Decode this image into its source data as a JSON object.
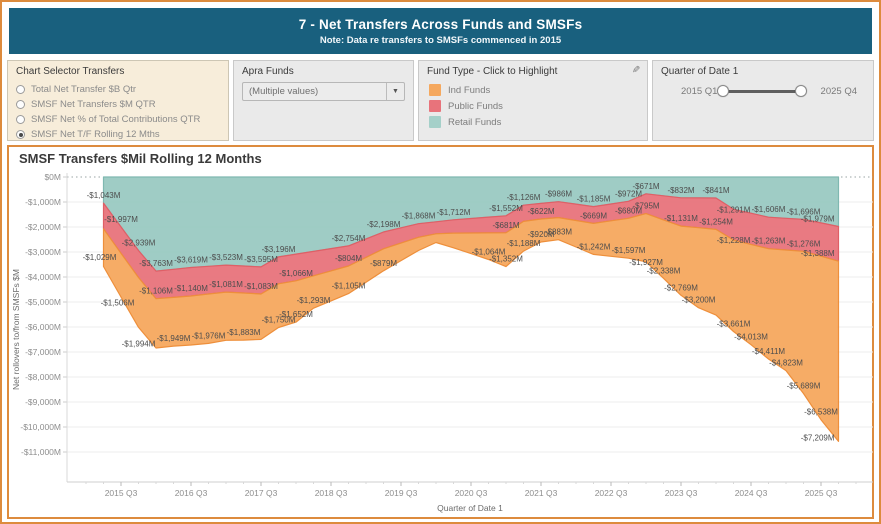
{
  "header": {
    "title": "7 - Net Transfers Across Funds and SMSFs",
    "subtitle": "Note: Data re transfers to SMSFs commenced in 2015"
  },
  "filters": {
    "chart_selector": {
      "title": "Chart Selector Transfers",
      "selected_index": 3,
      "options": [
        "Total Net Transfer $B Qtr",
        "SMSF Net Transfers $M QTR",
        "SMSF Net % of Total Contributions QTR",
        "SMSF Net T/F Rolling 12 Mths"
      ]
    },
    "apra_funds": {
      "title": "Apra Funds",
      "value": "(Multiple values)"
    },
    "fund_type": {
      "title": "Fund Type - Click to Highlight",
      "highlight_icon": "pen",
      "items": [
        {
          "label": "Ind Funds",
          "color": "#F5A85E"
        },
        {
          "label": "Public Funds",
          "color": "#E8737B"
        },
        {
          "label": "Retail Funds",
          "color": "#A5D0C9"
        }
      ]
    },
    "quarter_slider": {
      "title": "Quarter of Date 1",
      "min": "2015 Q1",
      "max": "2025 Q4"
    }
  },
  "chart": {
    "title": "SMSF Transfers $Mil Rolling 12 Months"
  },
  "chart_data": {
    "type": "area",
    "stacked": true,
    "title": "SMSF Transfers $Mil Rolling 12 Months",
    "xlabel": "Quarter of Date 1",
    "ylabel": "Net rollovers to/from SMSFs $M",
    "ylim": [
      -12200,
      0
    ],
    "grid": true,
    "x_range": [
      "2015 Q1",
      "2025 Q4"
    ],
    "x_ticks": [
      "2015 Q3",
      "2016 Q3",
      "2017 Q3",
      "2018 Q3",
      "2019 Q3",
      "2020 Q3",
      "2021 Q3",
      "2022 Q3",
      "2023 Q3",
      "2024 Q3",
      "2025 Q3"
    ],
    "y_ticks": [
      "$0M",
      "-$1,000M",
      "-$2,000M",
      "-$3,000M",
      "-$4,000M",
      "-$5,000M",
      "-$6,000M",
      "-$7,000M",
      "-$8,000M",
      "-$9,000M",
      "-$10,000M",
      "-$11,000M"
    ],
    "stack_order_top_to_bottom": [
      "Retail Funds",
      "Public Funds",
      "Ind Funds"
    ],
    "series": [
      {
        "name": "Retail Funds",
        "fill": "#9AC9C2",
        "stroke": "#7FB8B1",
        "points": [
          {
            "q": "2015 Q2",
            "v": -1043,
            "label": true
          },
          {
            "q": "2015 Q3",
            "v": -1997,
            "label": true
          },
          {
            "q": "2015 Q4",
            "v": -2939,
            "label": true
          },
          {
            "q": "2016 Q1",
            "v": -3763,
            "label": true
          },
          {
            "q": "2016 Q3",
            "v": -3619,
            "label": true
          },
          {
            "q": "2017 Q1",
            "v": -3523,
            "label": true
          },
          {
            "q": "2017 Q3",
            "v": -3595,
            "label": true
          },
          {
            "q": "2017 Q4",
            "v": -3196,
            "label": true
          },
          {
            "q": "2018 Q4",
            "v": -2754,
            "label": true
          },
          {
            "q": "2019 Q2",
            "v": -2198,
            "label": true
          },
          {
            "q": "2019 Q4",
            "v": -1868,
            "label": true
          },
          {
            "q": "2020 Q2",
            "v": -1712,
            "label": true
          },
          {
            "q": "2021 Q1",
            "v": -1552,
            "label": true
          },
          {
            "q": "2021 Q2",
            "v": -1126,
            "label": true
          },
          {
            "q": "2021 Q4",
            "v": -986,
            "label": true
          },
          {
            "q": "2022 Q2",
            "v": -1185,
            "label": true
          },
          {
            "q": "2022 Q4",
            "v": -972,
            "label": true
          },
          {
            "q": "2023 Q1",
            "v": -671,
            "label": true
          },
          {
            "q": "2023 Q3",
            "v": -832,
            "label": true
          },
          {
            "q": "2024 Q1",
            "v": -841,
            "label": true
          },
          {
            "q": "2024 Q2",
            "v": -1291,
            "label": true,
            "dy": 8
          },
          {
            "q": "2024 Q4",
            "v": -1606,
            "label": true
          },
          {
            "q": "2025 Q2",
            "v": -1696,
            "label": true
          },
          {
            "q": "2025 Q4",
            "v": -1979,
            "label": true,
            "anchor": "end",
            "dx": -4
          }
        ]
      },
      {
        "name": "Public Funds",
        "fill": "#E8737B",
        "stroke": "#DF5F66",
        "points": [
          {
            "q": "2015 Q2",
            "v": -1029,
            "label": true,
            "dy": 36,
            "dx": -4
          },
          {
            "q": "2016 Q1",
            "v": -1106,
            "label": true
          },
          {
            "q": "2016 Q3",
            "v": -1140,
            "label": true
          },
          {
            "q": "2017 Q1",
            "v": -1081,
            "label": true
          },
          {
            "q": "2017 Q3",
            "v": -1083,
            "label": true
          },
          {
            "q": "2018 Q1",
            "v": -1066,
            "label": true
          },
          {
            "q": "2018 Q4",
            "v": -804,
            "label": true
          },
          {
            "q": "2020 Q1",
            "v": -480,
            "label": false
          },
          {
            "q": "2021 Q1",
            "v": -681,
            "label": true
          },
          {
            "q": "2021 Q3",
            "v": -622,
            "label": true
          },
          {
            "q": "2022 Q2",
            "v": -669,
            "label": true
          },
          {
            "q": "2022 Q4",
            "v": -680,
            "label": true
          },
          {
            "q": "2023 Q1",
            "v": -795,
            "label": true
          },
          {
            "q": "2023 Q3",
            "v": -1131,
            "label": true
          },
          {
            "q": "2024 Q1",
            "v": -1254,
            "label": true
          },
          {
            "q": "2024 Q2",
            "v": -1228,
            "label": true,
            "dy": 8
          },
          {
            "q": "2024 Q4",
            "v": -1263,
            "label": true
          },
          {
            "q": "2025 Q2",
            "v": -1276,
            "label": true
          },
          {
            "q": "2025 Q4",
            "v": -1388,
            "label": true,
            "anchor": "end",
            "dx": -4
          }
        ]
      },
      {
        "name": "Ind Funds",
        "fill": "#F5A85E",
        "stroke": "#EE8F3B",
        "points": [
          {
            "q": "2015 Q2",
            "v": -1506,
            "label": true,
            "dx": 14,
            "dy": 44
          },
          {
            "q": "2015 Q4",
            "v": -1994,
            "label": true,
            "dy": 24
          },
          {
            "q": "2016 Q2",
            "v": -1949,
            "label": true
          },
          {
            "q": "2016 Q4",
            "v": -1976,
            "label": true
          },
          {
            "q": "2017 Q2",
            "v": -1883,
            "label": true
          },
          {
            "q": "2017 Q4",
            "v": -1750,
            "label": true
          },
          {
            "q": "2018 Q1",
            "v": -1652,
            "label": true
          },
          {
            "q": "2018 Q2",
            "v": -1293,
            "label": true
          },
          {
            "q": "2018 Q4",
            "v": -1105,
            "label": true
          },
          {
            "q": "2019 Q2",
            "v": -879,
            "label": true
          },
          {
            "q": "2020 Q1",
            "v": -350,
            "label": false
          },
          {
            "q": "2020 Q4",
            "v": -1064,
            "label": true
          },
          {
            "q": "2021 Q1",
            "v": -1352,
            "label": true
          },
          {
            "q": "2021 Q2",
            "v": -1188,
            "label": true
          },
          {
            "q": "2021 Q3",
            "v": -920,
            "label": true
          },
          {
            "q": "2021 Q4",
            "v": -883,
            "label": true
          },
          {
            "q": "2022 Q2",
            "v": -1242,
            "label": true
          },
          {
            "q": "2022 Q4",
            "v": -1597,
            "label": true
          },
          {
            "q": "2023 Q1",
            "v": -1927,
            "label": true,
            "dy": 8
          },
          {
            "q": "2023 Q2",
            "v": -2338,
            "label": true
          },
          {
            "q": "2023 Q3",
            "v": -2769,
            "label": true
          },
          {
            "q": "2023 Q4",
            "v": -3200,
            "label": true
          },
          {
            "q": "2024 Q2",
            "v": -3661,
            "label": true
          },
          {
            "q": "2024 Q3",
            "v": -4013,
            "label": true
          },
          {
            "q": "2024 Q4",
            "v": -4411,
            "label": true
          },
          {
            "q": "2025 Q1",
            "v": -4823,
            "label": true
          },
          {
            "q": "2025 Q2",
            "v": -5689,
            "label": true
          },
          {
            "q": "2025 Q3",
            "v": -6538,
            "label": true
          },
          {
            "q": "2025 Q4",
            "v": -7209,
            "label": true,
            "anchor": "end",
            "dx": -4,
            "dy": 4
          }
        ]
      }
    ]
  }
}
